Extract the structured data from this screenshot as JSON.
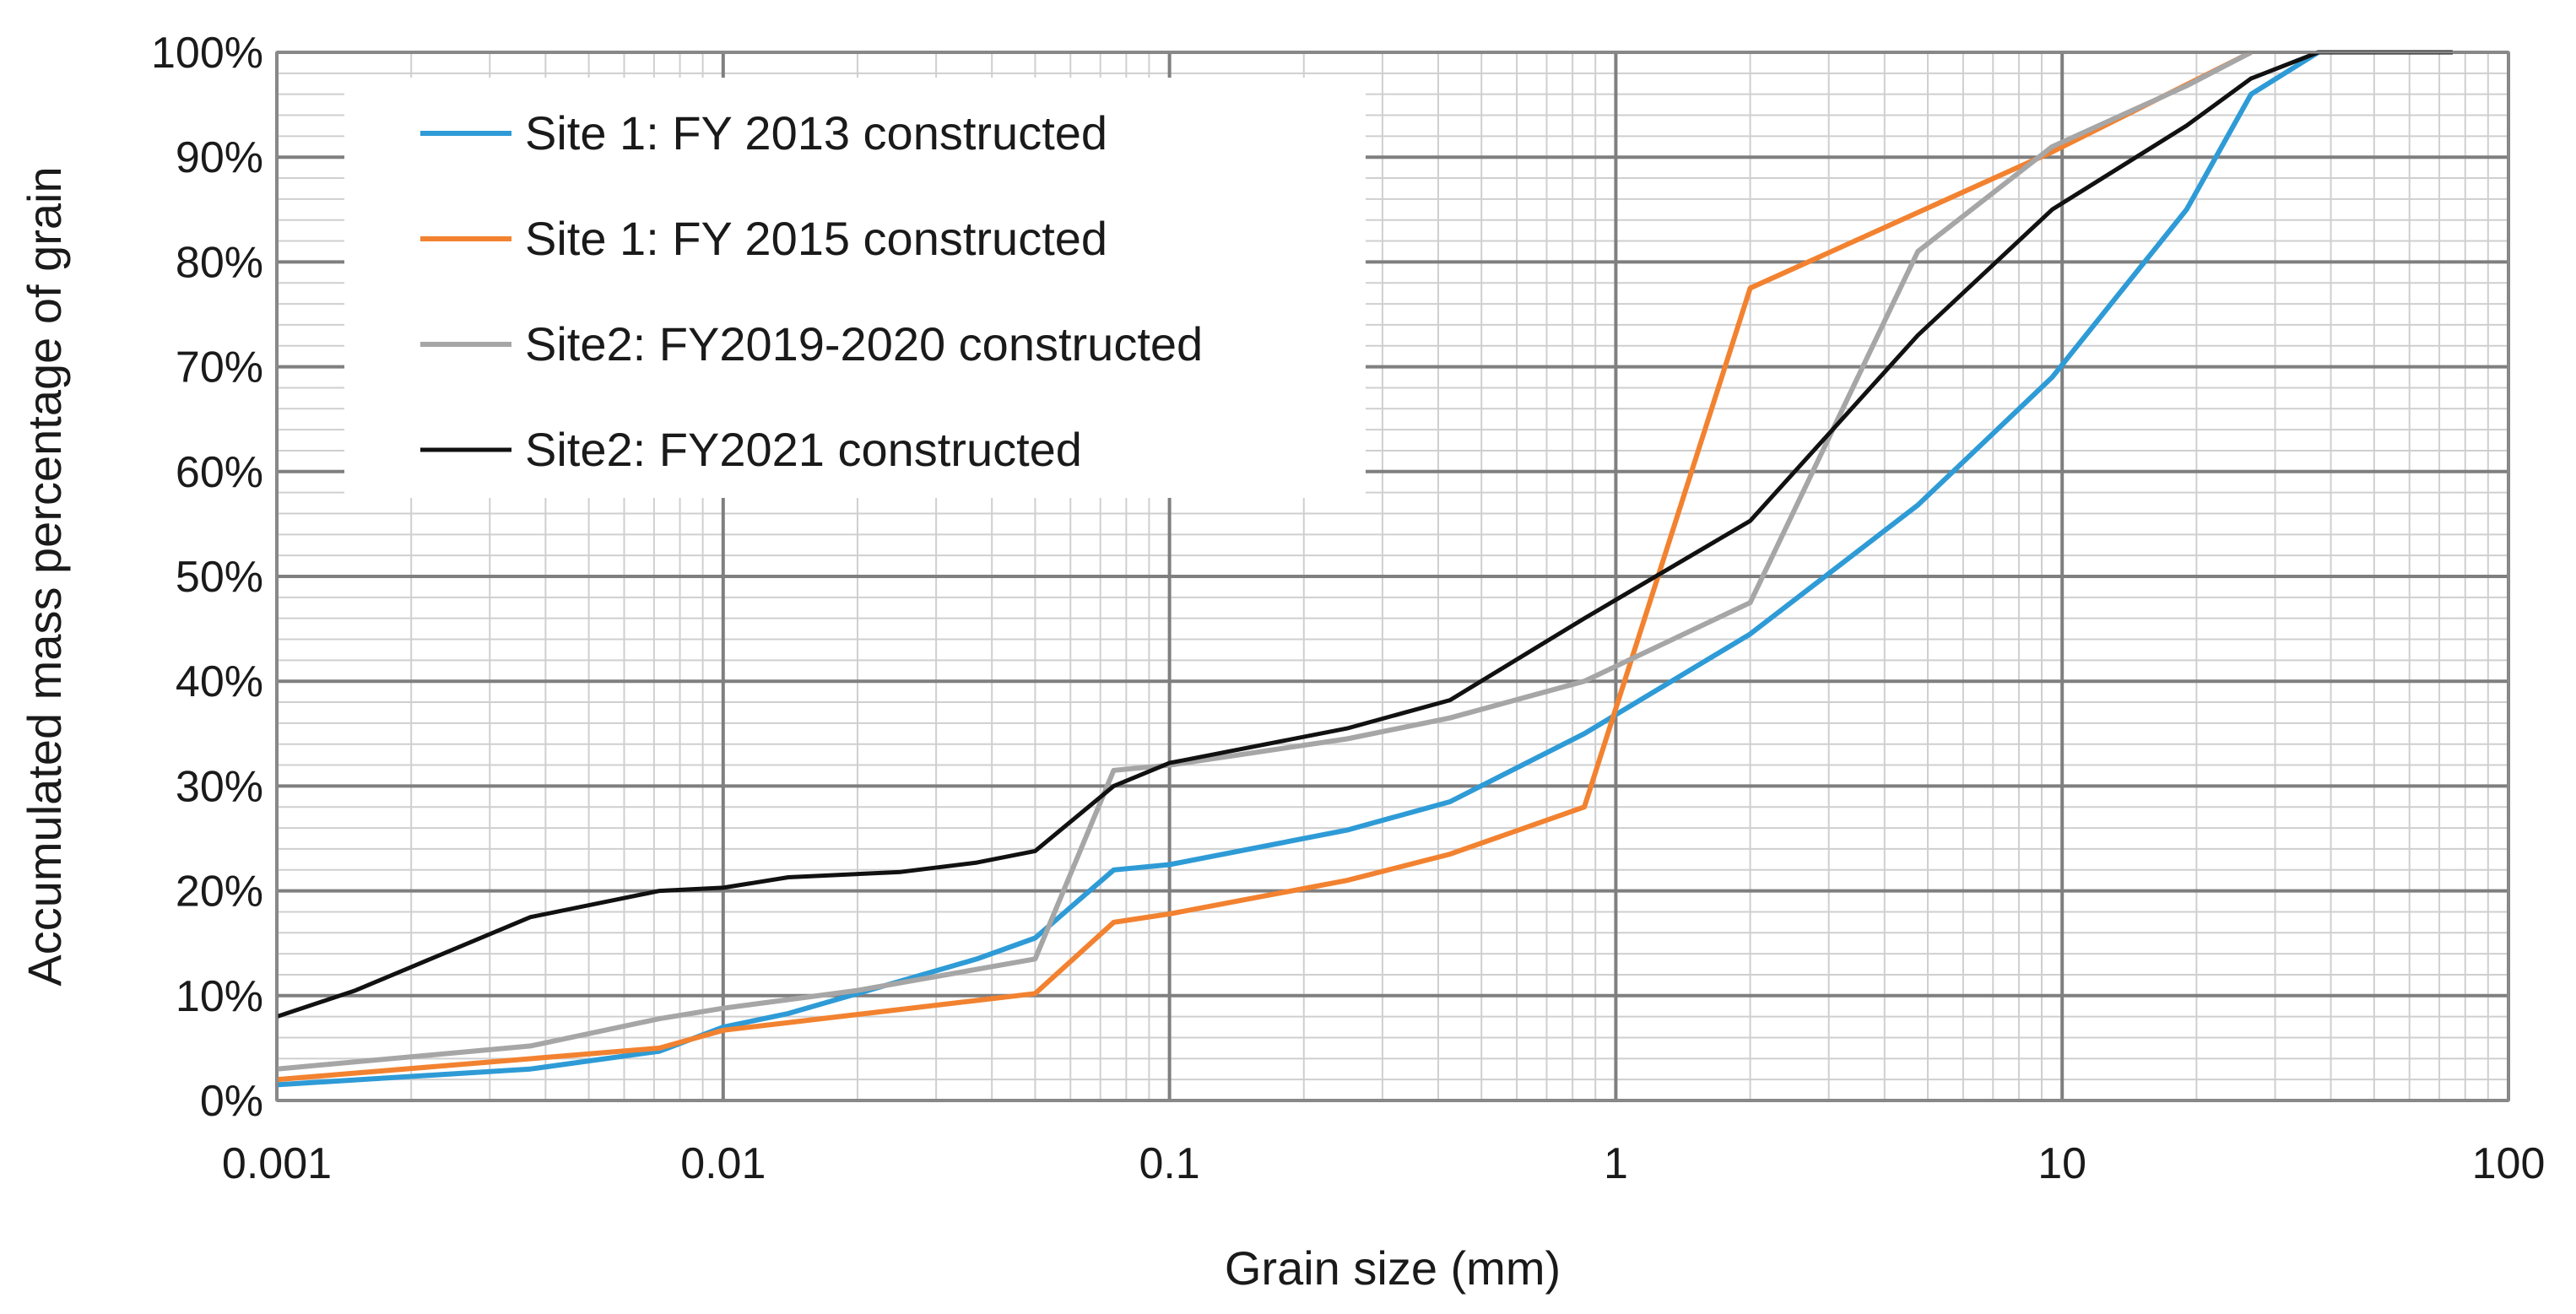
{
  "chart_data": {
    "type": "line",
    "title": "",
    "xlabel": "Grain size (mm)",
    "ylabel": "Accumulated mass percentage of grain",
    "xscale": "log",
    "xlim": [
      0.001,
      100
    ],
    "ylim": [
      0,
      100
    ],
    "x_ticks": [
      0.001,
      0.01,
      0.1,
      1,
      10,
      100
    ],
    "x_tick_labels": [
      "0.001",
      "0.01",
      "0.1",
      "1",
      "10",
      "100"
    ],
    "y_ticks": [
      0,
      10,
      20,
      30,
      40,
      50,
      60,
      70,
      80,
      90,
      100
    ],
    "y_tick_labels": [
      "0%",
      "10%",
      "20%",
      "30%",
      "40%",
      "50%",
      "60%",
      "70%",
      "80%",
      "90%",
      "100%"
    ],
    "grid": true,
    "legend_position": "top-left",
    "series": [
      {
        "name": "Site 1: FY 2013 constructed",
        "color": "#2E9BD6",
        "points": [
          [
            0.001,
            1.5
          ],
          [
            0.0037,
            3.0
          ],
          [
            0.0072,
            4.7
          ],
          [
            0.01,
            7.0
          ],
          [
            0.014,
            8.3
          ],
          [
            0.02,
            10.2
          ],
          [
            0.037,
            13.5
          ],
          [
            0.05,
            15.5
          ],
          [
            0.075,
            22.0
          ],
          [
            0.1,
            22.5
          ],
          [
            0.25,
            25.8
          ],
          [
            0.425,
            28.5
          ],
          [
            0.85,
            35.0
          ],
          [
            2.0,
            44.5
          ],
          [
            4.75,
            56.8
          ],
          [
            9.5,
            69.0
          ],
          [
            19,
            85.0
          ],
          [
            26.5,
            96.0
          ],
          [
            37.5,
            100
          ]
        ]
      },
      {
        "name": "Site 1: FY 2015 constructed",
        "color": "#F28230",
        "points": [
          [
            0.001,
            2.0
          ],
          [
            0.0072,
            5.0
          ],
          [
            0.01,
            6.7
          ],
          [
            0.05,
            10.2
          ],
          [
            0.075,
            17.0
          ],
          [
            0.1,
            17.8
          ],
          [
            0.25,
            21.0
          ],
          [
            0.425,
            23.5
          ],
          [
            0.85,
            28.0
          ],
          [
            2.0,
            77.5
          ],
          [
            9.5,
            90.5
          ],
          [
            26.5,
            100
          ]
        ]
      },
      {
        "name": "Site2: FY2019-2020 constructed",
        "color": "#A6A6A6",
        "points": [
          [
            0.001,
            3.0
          ],
          [
            0.0037,
            5.2
          ],
          [
            0.0072,
            7.8
          ],
          [
            0.01,
            8.8
          ],
          [
            0.02,
            10.5
          ],
          [
            0.05,
            13.5
          ],
          [
            0.075,
            31.5
          ],
          [
            0.1,
            32.0
          ],
          [
            0.25,
            34.5
          ],
          [
            0.425,
            36.5
          ],
          [
            0.85,
            40.0
          ],
          [
            2.0,
            47.5
          ],
          [
            4.75,
            81.0
          ],
          [
            9.5,
            91.0
          ],
          [
            19,
            96.8
          ],
          [
            26.5,
            100
          ]
        ]
      },
      {
        "name": "Site2: FY2021 constructed",
        "color": "#111111",
        "points": [
          [
            0.001,
            8.0
          ],
          [
            0.0015,
            10.5
          ],
          [
            0.0037,
            17.5
          ],
          [
            0.0072,
            20.0
          ],
          [
            0.01,
            20.3
          ],
          [
            0.014,
            21.3
          ],
          [
            0.025,
            21.8
          ],
          [
            0.037,
            22.7
          ],
          [
            0.05,
            23.8
          ],
          [
            0.075,
            30.0
          ],
          [
            0.1,
            32.2
          ],
          [
            0.25,
            35.5
          ],
          [
            0.425,
            38.2
          ],
          [
            0.85,
            46.0
          ],
          [
            2.0,
            55.3
          ],
          [
            4.75,
            73.0
          ],
          [
            9.5,
            85.0
          ],
          [
            19,
            93.0
          ],
          [
            26.5,
            97.5
          ],
          [
            37.5,
            100
          ],
          [
            75,
            100
          ]
        ]
      }
    ]
  }
}
